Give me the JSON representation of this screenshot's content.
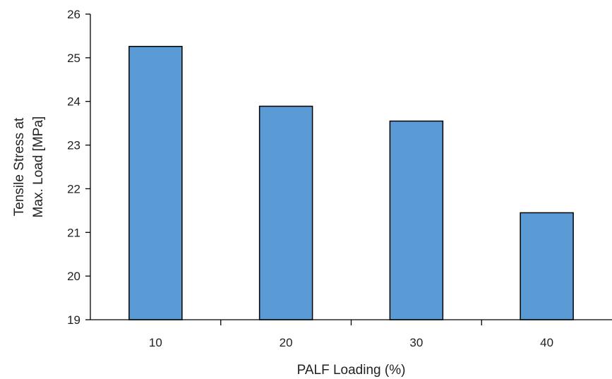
{
  "chart_data": {
    "type": "bar",
    "categories": [
      "10",
      "20",
      "30",
      "40"
    ],
    "values": [
      25.26,
      23.89,
      23.55,
      21.45
    ],
    "title": "",
    "xlabel": "PALF Loading (%)",
    "ylabel_lines": [
      "Tensile Stress at",
      "Max. Load [MPa]"
    ],
    "ylim": [
      19,
      26
    ],
    "yticks": [
      19,
      20,
      21,
      22,
      23,
      24,
      25,
      26
    ],
    "grid": false,
    "legend": "none",
    "bar_color": "#5b9bd5"
  }
}
